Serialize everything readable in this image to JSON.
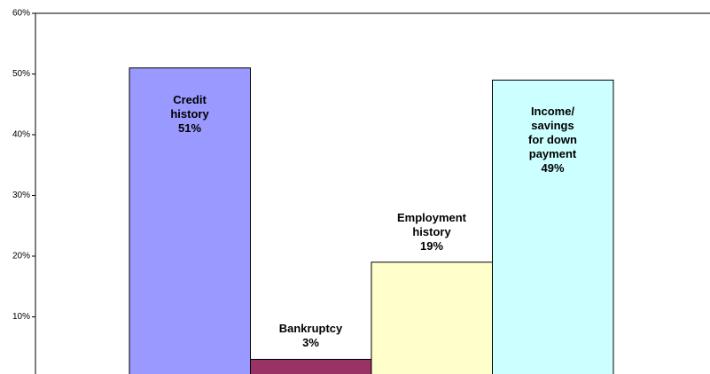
{
  "chart_data": {
    "type": "bar",
    "categories": [
      "Credit\nhistory",
      "Bankruptcy",
      "Employment\nhistory",
      "Income/\nsavings\nfor down\npayment"
    ],
    "values": [
      51,
      3,
      19,
      49
    ],
    "value_labels": [
      "51%",
      "3%",
      "19%",
      "49%"
    ],
    "colors": [
      "#9999ff",
      "#993366",
      "#ffffcc",
      "#ccffff"
    ],
    "ylim": [
      0,
      60
    ],
    "yticks": [
      {
        "value": 10,
        "label": "10%"
      },
      {
        "value": 20,
        "label": "20%"
      },
      {
        "value": 30,
        "label": "30%"
      },
      {
        "value": 40,
        "label": "40%"
      },
      {
        "value": 50,
        "label": "50%"
      },
      {
        "value": 60,
        "label": "60%"
      }
    ],
    "grid": false
  }
}
